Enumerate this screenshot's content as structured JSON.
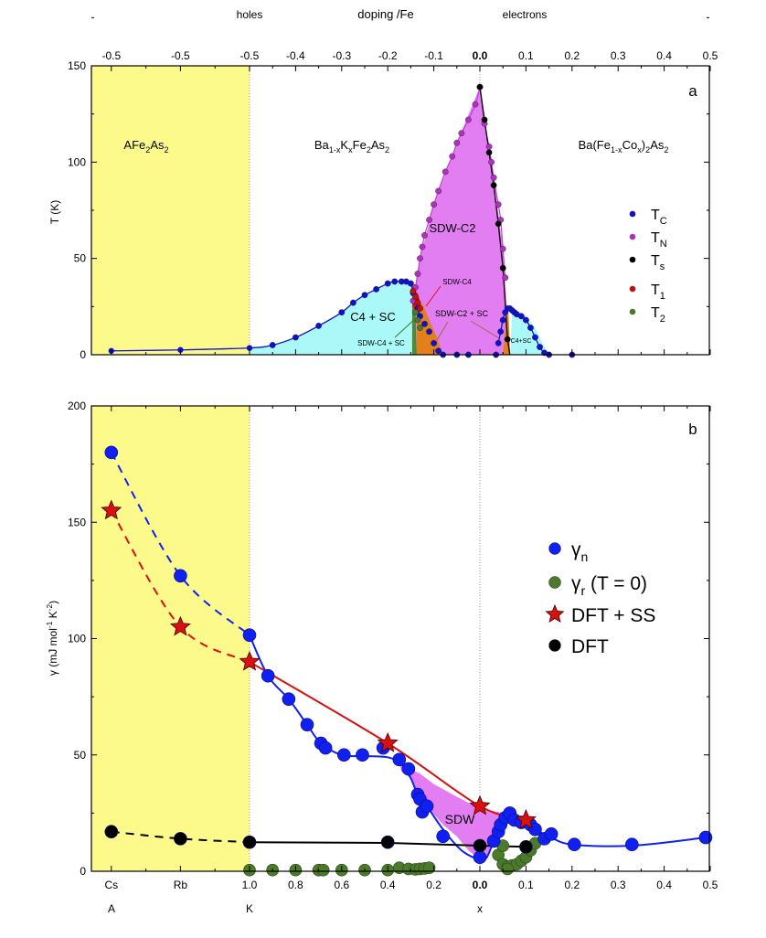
{
  "chart_data": [
    {
      "type": "scatter",
      "panel_label": "a",
      "top_axis": {
        "title": "doping /Fe",
        "hole_label": "holes",
        "electron_label": "electrons",
        "tick_labels": [
          "-0.5",
          "-0.5",
          "-0.5",
          "-0.4",
          "-0.3",
          "-0.2",
          "-0.1",
          "0.0",
          "0.1",
          "0.2",
          "0.3",
          "0.4",
          "0.5"
        ]
      },
      "ylabel": "T (K)",
      "ylim": [
        0,
        150
      ],
      "yticks": [
        "0",
        "50",
        "100",
        "150"
      ],
      "compound_labels": [
        {
          "parts": [
            {
              "t": "AFe"
            },
            {
              "t": "2",
              "sub": true
            },
            {
              "t": "As"
            },
            {
              "t": "2",
              "sub": true
            }
          ]
        },
        {
          "parts": [
            {
              "t": "Ba"
            },
            {
              "t": "1-x",
              "sub": true
            },
            {
              "t": "K"
            },
            {
              "t": "x",
              "sub": true
            },
            {
              "t": "Fe"
            },
            {
              "t": "2",
              "sub": true
            },
            {
              "t": "As"
            },
            {
              "t": "2",
              "sub": true
            }
          ]
        },
        {
          "parts": [
            {
              "t": "Ba(Fe"
            },
            {
              "t": "1-x",
              "sub": true
            },
            {
              "t": "Co"
            },
            {
              "t": "x",
              "sub": true
            },
            {
              "t": ")"
            },
            {
              "t": "2",
              "sub": true
            },
            {
              "t": "As"
            },
            {
              "t": "2",
              "sub": true
            }
          ]
        }
      ],
      "region_labels": [
        "SDW-C2",
        "SDW-C4",
        "C4 + SC",
        "SDW-C2 + SC",
        "SDW-C4 + SC",
        "C4+SC"
      ],
      "alkali_Tc": {
        "Cs": 2,
        "Rb": 2.5,
        "K": 3.5
      },
      "series": [
        {
          "name": "T",
          "sub": "C",
          "color": "#1010d0",
          "x": [
            -0.45,
            -0.4,
            -0.35,
            -0.3,
            -0.275,
            -0.25,
            -0.225,
            -0.2,
            -0.185,
            -0.17,
            -0.16,
            -0.15,
            -0.145,
            -0.14,
            -0.135,
            -0.13,
            -0.12,
            -0.11,
            -0.1,
            -0.09,
            -0.08,
            -0.05,
            -0.025,
            0.035,
            0.04,
            0.045,
            0.05,
            0.055,
            0.06,
            0.065,
            0.07,
            0.075,
            0.08,
            0.09,
            0.1,
            0.11,
            0.12,
            0.13,
            0.14,
            0.15,
            0.2
          ],
          "y": [
            5,
            9,
            15,
            22,
            27,
            31,
            34,
            37,
            38,
            38,
            38,
            37,
            32,
            28,
            24,
            20,
            16,
            12,
            6,
            2,
            0,
            0,
            0,
            0,
            6,
            12,
            18,
            22,
            24,
            24,
            23,
            22,
            21,
            20,
            18,
            14,
            9,
            4,
            1,
            0,
            0
          ]
        },
        {
          "name": "T",
          "sub": "N",
          "color": "#b030c0",
          "x": [
            0,
            -0.01,
            -0.025,
            -0.04,
            -0.05,
            -0.06,
            -0.075,
            -0.09,
            -0.1,
            -0.11,
            -0.12,
            -0.125,
            -0.13,
            -0.135,
            -0.14,
            -0.145,
            0.01,
            0.02,
            0.025,
            0.03,
            0.04,
            0.045,
            0.05,
            0.055
          ],
          "y": [
            139,
            130,
            122,
            115,
            110,
            103,
            95,
            85,
            78,
            70,
            62,
            56,
            50,
            42,
            35,
            28,
            120,
            108,
            100,
            92,
            78,
            70,
            55,
            40
          ]
        },
        {
          "name": "T",
          "sub": "s",
          "color": "#000000",
          "x": [
            0,
            0.01,
            0.02,
            0.03,
            0.04,
            0.05,
            0.06
          ],
          "y": [
            139,
            122,
            105,
            88,
            68,
            45,
            8
          ]
        },
        {
          "name": "T",
          "sub": "1",
          "color": "#c01010",
          "x": [
            -0.145,
            -0.14,
            -0.135,
            -0.13
          ],
          "y": [
            33,
            30,
            27,
            24
          ]
        },
        {
          "name": "T",
          "sub": "2",
          "color": "#4a7a2a",
          "x": [
            -0.14,
            -0.135,
            -0.13
          ],
          "y": [
            22,
            18,
            14
          ]
        }
      ],
      "regions": [
        {
          "label": "C4 + SC",
          "color": "#aaf8f8",
          "x": [
            -0.5,
            -0.45,
            -0.4,
            -0.35,
            -0.3,
            -0.25,
            -0.2,
            -0.17,
            -0.15,
            -0.145,
            -0.145,
            -0.5
          ],
          "y": [
            3.5,
            5,
            9,
            15,
            22,
            31,
            37,
            38,
            37,
            32,
            0,
            0
          ]
        },
        {
          "label": "SDW-C2",
          "color": "#e27ef2",
          "x": [
            -0.145,
            -0.145,
            -0.13,
            -0.1,
            -0.05,
            0,
            0.03,
            0.05,
            0.06,
            0.065
          ],
          "y": [
            0,
            28,
            50,
            78,
            110,
            139,
            92,
            55,
            20,
            0
          ]
        },
        {
          "label": "SDW-C4 + SC",
          "color": "#4e8a2e",
          "x": [
            -0.147,
            -0.147,
            -0.14,
            -0.137
          ],
          "y": [
            0,
            25,
            22,
            0
          ]
        },
        {
          "label": "SDW-C4",
          "color": "#e01010",
          "x": [
            -0.147,
            -0.145,
            -0.135,
            -0.125,
            -0.135,
            -0.147
          ],
          "y": [
            25,
            33,
            32,
            24,
            21,
            25
          ]
        },
        {
          "label": "SDW-C2 + SC",
          "color": "#e3801c",
          "x": [
            -0.137,
            -0.137,
            -0.125,
            -0.11,
            -0.095,
            -0.08
          ],
          "y": [
            0,
            20,
            27,
            18,
            10,
            0
          ]
        },
        {
          "label": "C4+SC",
          "color": "#e3801c",
          "x": [
            0.05,
            0.056,
            0.062,
            0.066
          ],
          "y": [
            0,
            18,
            22,
            0
          ]
        },
        {
          "label": "C4+SC",
          "color": "#aaf8f8",
          "x": [
            0.066,
            0.07,
            0.08,
            0.1,
            0.12,
            0.14,
            0.15
          ],
          "y": [
            0,
            24,
            23,
            20,
            14,
            4,
            0
          ]
        }
      ]
    },
    {
      "type": "scatter",
      "panel_label": "b",
      "ylabel_parts": [
        {
          "t": "γ (mJ mol"
        },
        {
          "t": "-1",
          "sup": true
        },
        {
          "t": " K"
        },
        {
          "t": "-2",
          "sup": true
        },
        {
          "t": ")"
        }
      ],
      "ylim": [
        0,
        200
      ],
      "yticks": [
        "0",
        "50",
        "100",
        "150",
        "200"
      ],
      "x_tick_labels": [
        "Cs",
        "Rb",
        "1.0",
        "0.8",
        "0.6",
        "0.4",
        "0.2",
        "0.0",
        "0.1",
        "0.2",
        "0.3",
        "0.4",
        "0.5"
      ],
      "x_group_labels": [
        "A",
        "K",
        "x"
      ],
      "region_labels": [
        "SDW"
      ],
      "series": [
        {
          "name": "γ",
          "sub": "n",
          "color": "#1020f0",
          "marker": "circle",
          "alkali": {
            "Cs": 180,
            "Rb": 127,
            "K": 101.5
          },
          "BaK_x": [
            0.92,
            0.83,
            0.75,
            0.69,
            0.67,
            0.59,
            0.51,
            0.42,
            0.35,
            0.31,
            0.27,
            0.26,
            0.25,
            0.23,
            0.16,
            0.0
          ],
          "BaK_y": [
            84,
            74,
            63,
            55,
            53,
            50,
            50,
            53,
            48,
            44,
            33,
            31,
            25.5,
            28,
            15,
            6
          ],
          "BaCo_x": [
            0.03,
            0.04,
            0.045,
            0.055,
            0.065,
            0.075,
            0.09,
            0.11,
            0.12,
            0.14,
            0.155,
            0.205,
            0.33,
            0.49
          ],
          "BaCo_y": [
            13,
            17,
            20,
            23,
            25,
            22,
            21,
            20,
            18,
            14,
            16,
            11.5,
            11.5,
            14.5
          ]
        },
        {
          "name": "γ",
          "sub": "r",
          "suffix": " (T = 0)",
          "color": "#4a7a2a",
          "marker": "circle",
          "BaK_x": [
            1.0,
            0.9,
            0.8,
            0.7,
            0.68,
            0.6,
            0.5,
            0.4,
            0.35,
            0.31,
            0.28,
            0.26,
            0.24,
            0.22
          ],
          "BaK_y": [
            0.5,
            0.5,
            0.5,
            0.5,
            0.5,
            0.5,
            0.5,
            0.5,
            1.5,
            1,
            0.8,
            1,
            1.2,
            1.5
          ],
          "BaCo_x": [
            0.04,
            0.05,
            0.06,
            0.07,
            0.08,
            0.09,
            0.1,
            0.11,
            0.12,
            0.05,
            0.06
          ],
          "BaCo_y": [
            7,
            3,
            2,
            2.5,
            3,
            4.5,
            6,
            9,
            12,
            11,
            1
          ]
        },
        {
          "name": "DFT + SS",
          "color": "#d81010",
          "marker": "star",
          "alkali": {
            "Cs": 155,
            "Rb": 105,
            "K": 90
          },
          "BaK_x": [
            0.4,
            0.0
          ],
          "BaK_y": [
            55,
            28
          ],
          "BaCo_x": [
            0.1
          ],
          "BaCo_y": [
            22
          ]
        },
        {
          "name": "DFT",
          "color": "#000000",
          "marker": "circle",
          "alkali": {
            "Cs": 17,
            "Rb": 14,
            "K": 12.5
          },
          "BaK_x": [
            0.4,
            0.0
          ],
          "BaK_y": [
            12.5,
            11
          ],
          "BaCo_x": [
            0.1
          ],
          "BaCo_y": [
            10.5
          ]
        }
      ],
      "sdw_region": {
        "color": "#e27ef2"
      }
    }
  ],
  "colors": {
    "alkali_band": "#fdfa8c"
  }
}
